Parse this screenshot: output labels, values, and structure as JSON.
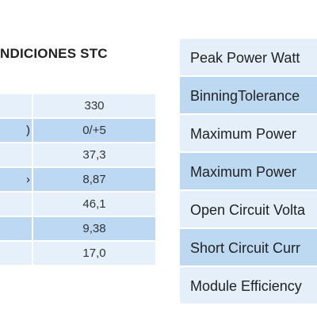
{
  "left_table": {
    "heading": "NDICIONES STC",
    "rows": [
      {
        "label": "",
        "value": "330"
      },
      {
        "label": ")",
        "value": "0/+5"
      },
      {
        "label": "",
        "value": "37,3"
      },
      {
        "label": "›",
        "value": "8,87"
      },
      {
        "label": "",
        "value": "46,1"
      },
      {
        "label": "",
        "value": "9,38"
      },
      {
        "label": "",
        "value": "17,0"
      }
    ]
  },
  "right_table": {
    "rows": [
      {
        "label": "Peak Power Watt"
      },
      {
        "label": "BinningTolerance"
      },
      {
        "label": "Maximum Power"
      },
      {
        "label": "Maximum Power"
      },
      {
        "label": "Open Circuit Volta"
      },
      {
        "label": "Short Circuit Curr"
      },
      {
        "label": "Module Efficiency"
      }
    ]
  }
}
